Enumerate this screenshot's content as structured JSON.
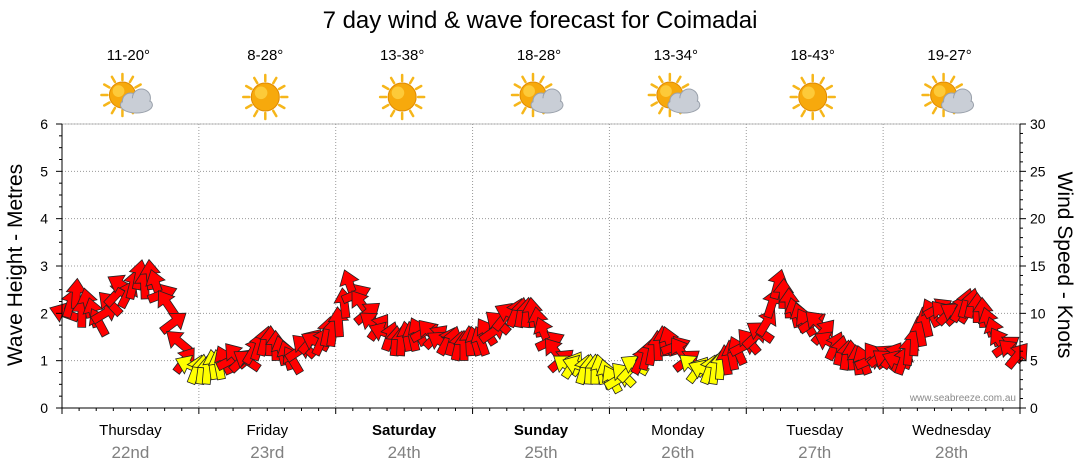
{
  "chart_data": {
    "type": "line",
    "title": "7 day wind & wave forecast for Coimadai",
    "ylabel_left": "Wave Height - Metres",
    "ylabel_right": "Wind Speed - Knots",
    "ylim_left": [
      0,
      6
    ],
    "ylim_right": [
      0,
      30
    ],
    "yticks_left": [
      "0",
      "1",
      "2",
      "3",
      "4",
      "5",
      "6"
    ],
    "yticks_right": [
      "0",
      "5",
      "10",
      "15",
      "20",
      "25",
      "30"
    ],
    "grid": true,
    "days": [
      {
        "name": "Thursday",
        "date": "22nd",
        "temp": "11-20°",
        "icon": "partly-cloudy-icon",
        "bold": false
      },
      {
        "name": "Friday",
        "date": "23rd",
        "temp": "8-28°",
        "icon": "sunny-icon",
        "bold": false
      },
      {
        "name": "Saturday",
        "date": "24th",
        "temp": "13-38°",
        "icon": "sunny-icon",
        "bold": true
      },
      {
        "name": "Sunday",
        "date": "25th",
        "temp": "18-28°",
        "icon": "partly-cloudy-icon",
        "bold": true
      },
      {
        "name": "Monday",
        "date": "26th",
        "temp": "13-34°",
        "icon": "partly-cloudy-icon",
        "bold": false
      },
      {
        "name": "Tuesday",
        "date": "27th",
        "temp": "18-43°",
        "icon": "sunny-icon",
        "bold": false
      },
      {
        "name": "Wednesday",
        "date": "28th",
        "temp": "19-27°",
        "icon": "partly-cloudy-icon",
        "bold": false
      }
    ],
    "series": [
      {
        "name": "Wind Speed - Knots",
        "unit": "knots",
        "points_per_day": 24,
        "values": [
          10,
          11,
          12,
          10,
          11,
          10,
          9,
          10,
          11,
          12,
          13,
          12,
          13,
          14,
          13,
          14,
          13,
          12,
          11,
          9,
          7,
          5,
          4.5,
          4,
          4,
          4,
          4.5,
          4.5,
          5,
          5,
          5.5,
          5,
          5,
          6,
          6.5,
          7,
          7,
          6.5,
          6,
          5.5,
          5,
          6,
          6.5,
          7,
          7,
          7,
          8,
          8,
          9,
          11,
          13,
          12,
          11,
          10,
          9,
          8.5,
          8,
          7.5,
          7,
          7,
          7.5,
          7.5,
          8,
          8,
          8,
          7.5,
          7,
          7,
          7,
          6.5,
          6.5,
          7,
          7,
          7,
          8,
          8,
          9,
          9.5,
          10,
          10,
          10,
          10,
          10,
          9,
          8,
          7,
          6,
          5,
          4.5,
          4.5,
          4.5,
          4,
          4,
          4,
          4,
          3.5,
          3,
          3,
          3.5,
          4,
          4.5,
          5,
          5.5,
          6,
          6.5,
          7,
          7,
          6.5,
          6,
          5,
          4.5,
          4,
          4,
          4,
          4,
          4.5,
          5,
          5.5,
          6,
          6.5,
          7,
          7.5,
          8,
          9,
          11,
          13,
          12,
          11,
          10,
          9.5,
          9,
          9,
          9,
          8,
          7,
          6.5,
          6,
          5.5,
          5.5,
          5,
          5,
          5,
          5.5,
          5.5,
          5,
          5.5,
          5,
          5,
          6,
          7,
          8,
          9,
          10,
          10.5,
          10,
          10,
          10,
          10.5,
          11,
          11,
          10.5,
          10,
          9,
          8,
          7,
          6.5,
          6,
          5.5
        ],
        "color_rule": "yellow below 5 knots, red at or above"
      }
    ],
    "watermark": "www.seabreeze.com.au"
  }
}
